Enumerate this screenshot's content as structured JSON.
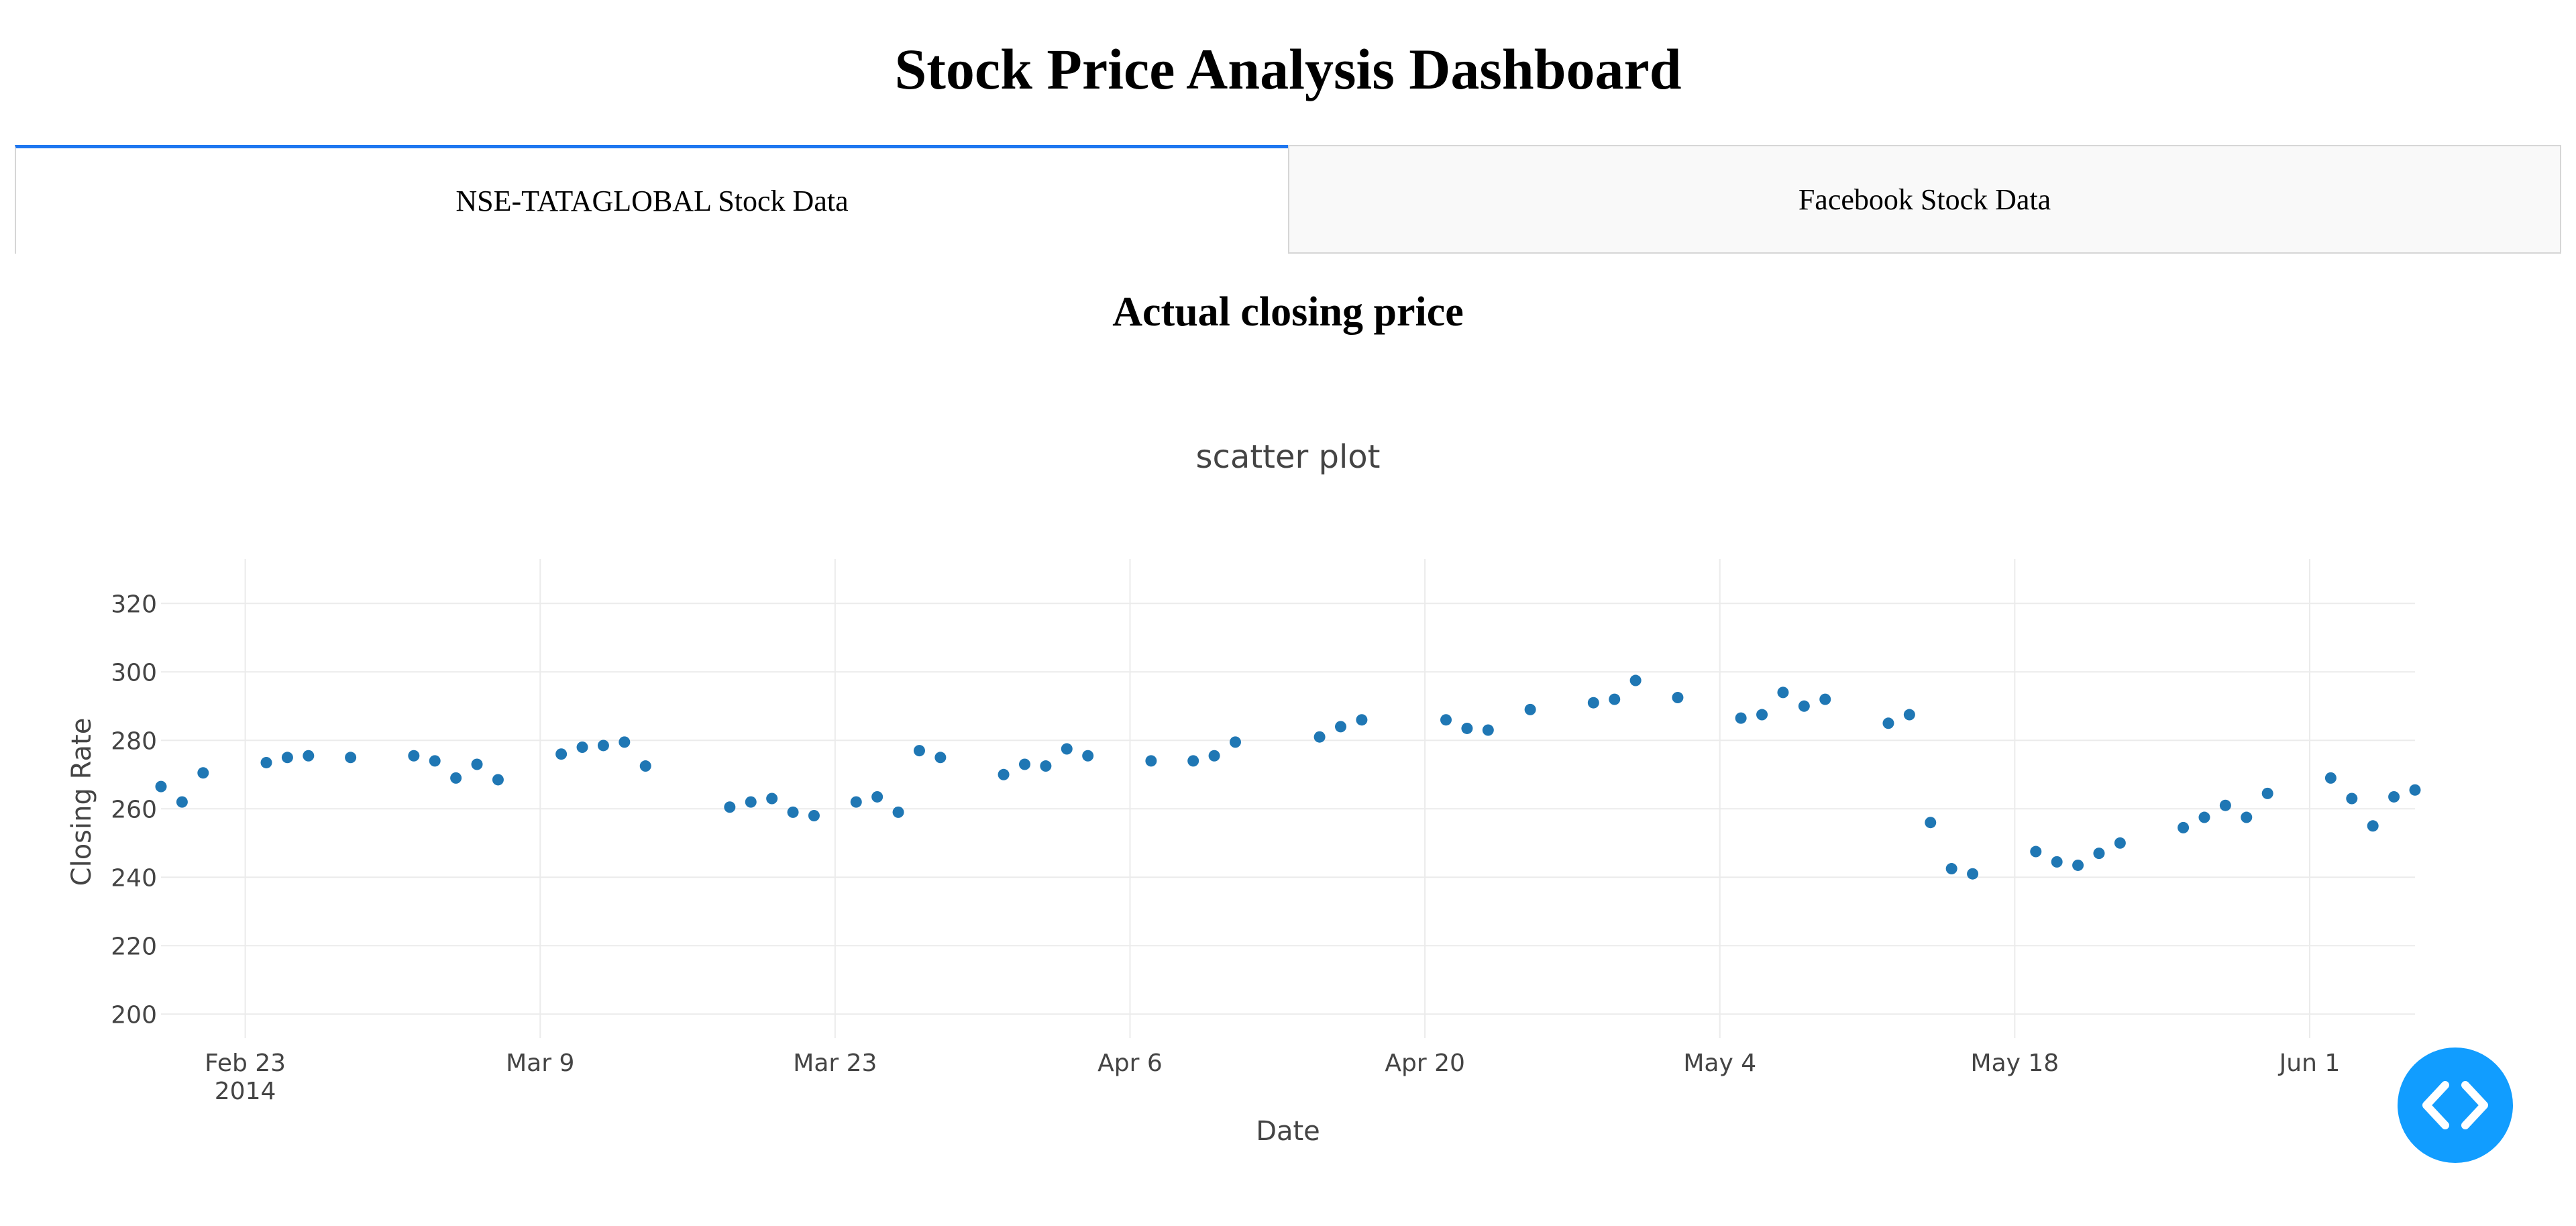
{
  "header": {
    "title": "Stock Price Analysis Dashboard"
  },
  "tabs": [
    {
      "label": "NSE-TATAGLOBAL Stock Data",
      "active": true
    },
    {
      "label": "Facebook Stock Data",
      "active": false
    }
  ],
  "section": {
    "title": "Actual closing price"
  },
  "colors": {
    "accent": "#1f77f0",
    "marker": "#1f77b4",
    "fab": "#119dff"
  },
  "fab": {
    "icon": "code-icon"
  },
  "chart_data": {
    "type": "scatter",
    "title": "scatter plot",
    "xlabel": "Date",
    "ylabel": "Closing Rate",
    "ylim": [
      193,
      333
    ],
    "xlim": [
      "2014-02-19",
      "2014-06-06"
    ],
    "y_ticks": [
      200,
      220,
      240,
      260,
      280,
      300,
      320
    ],
    "x_ticks": [
      {
        "date": "2014-02-23",
        "label": "Feb 23",
        "sublabel": "2014"
      },
      {
        "date": "2014-03-09",
        "label": "Mar 9"
      },
      {
        "date": "2014-03-23",
        "label": "Mar 23"
      },
      {
        "date": "2014-04-06",
        "label": "Apr 6"
      },
      {
        "date": "2014-04-20",
        "label": "Apr 20"
      },
      {
        "date": "2014-05-04",
        "label": "May 4"
      },
      {
        "date": "2014-05-18",
        "label": "May 18"
      },
      {
        "date": "2014-06-01",
        "label": "Jun 1"
      }
    ],
    "grid": true,
    "series": [
      {
        "x": [
          "2014-02-19",
          "2014-02-20",
          "2014-02-21",
          "2014-02-24",
          "2014-02-25",
          "2014-02-26",
          "2014-02-28",
          "2014-03-03",
          "2014-03-04",
          "2014-03-05",
          "2014-03-06",
          "2014-03-07",
          "2014-03-10",
          "2014-03-11",
          "2014-03-12",
          "2014-03-13",
          "2014-03-14",
          "2014-03-18",
          "2014-03-19",
          "2014-03-20",
          "2014-03-21",
          "2014-03-22",
          "2014-03-24",
          "2014-03-25",
          "2014-03-26",
          "2014-03-27",
          "2014-03-28",
          "2014-03-31",
          "2014-04-01",
          "2014-04-02",
          "2014-04-03",
          "2014-04-04",
          "2014-04-07",
          "2014-04-09",
          "2014-04-10",
          "2014-04-11",
          "2014-04-15",
          "2014-04-16",
          "2014-04-17",
          "2014-04-21",
          "2014-04-22",
          "2014-04-23",
          "2014-04-25",
          "2014-04-28",
          "2014-04-29",
          "2014-04-30",
          "2014-05-02",
          "2014-05-05",
          "2014-05-06",
          "2014-05-07",
          "2014-05-08",
          "2014-05-09",
          "2014-05-12",
          "2014-05-13",
          "2014-05-14",
          "2014-05-15",
          "2014-05-16",
          "2014-05-19",
          "2014-05-20",
          "2014-05-21",
          "2014-05-22",
          "2014-05-23",
          "2014-05-26",
          "2014-05-27",
          "2014-05-28",
          "2014-05-29",
          "2014-05-30",
          "2014-06-02",
          "2014-06-03",
          "2014-06-04",
          "2014-06-05",
          "2014-06-06"
        ],
        "y": [
          266.5,
          262.0,
          270.5,
          273.5,
          275.0,
          275.5,
          275.0,
          275.5,
          274.0,
          269.0,
          273.0,
          268.5,
          276.0,
          278.0,
          278.5,
          279.5,
          272.5,
          260.5,
          262.0,
          263.0,
          259.0,
          258.0,
          262.0,
          263.5,
          259.0,
          277.0,
          275.0,
          270.0,
          273.0,
          272.5,
          277.5,
          275.5,
          274.0,
          274.0,
          275.5,
          279.5,
          281.0,
          284.0,
          286.0,
          286.0,
          283.5,
          283.0,
          289.0,
          291.0,
          292.0,
          297.5,
          292.5,
          286.5,
          287.5,
          294.0,
          290.0,
          292.0,
          285.0,
          287.5,
          256.0,
          242.5,
          241.0,
          247.5,
          244.5,
          243.5,
          247.0,
          250.0,
          254.5,
          257.5,
          261.0,
          257.5,
          264.5,
          269.0,
          263.0,
          255.0,
          263.5,
          265.5
        ]
      }
    ]
  }
}
